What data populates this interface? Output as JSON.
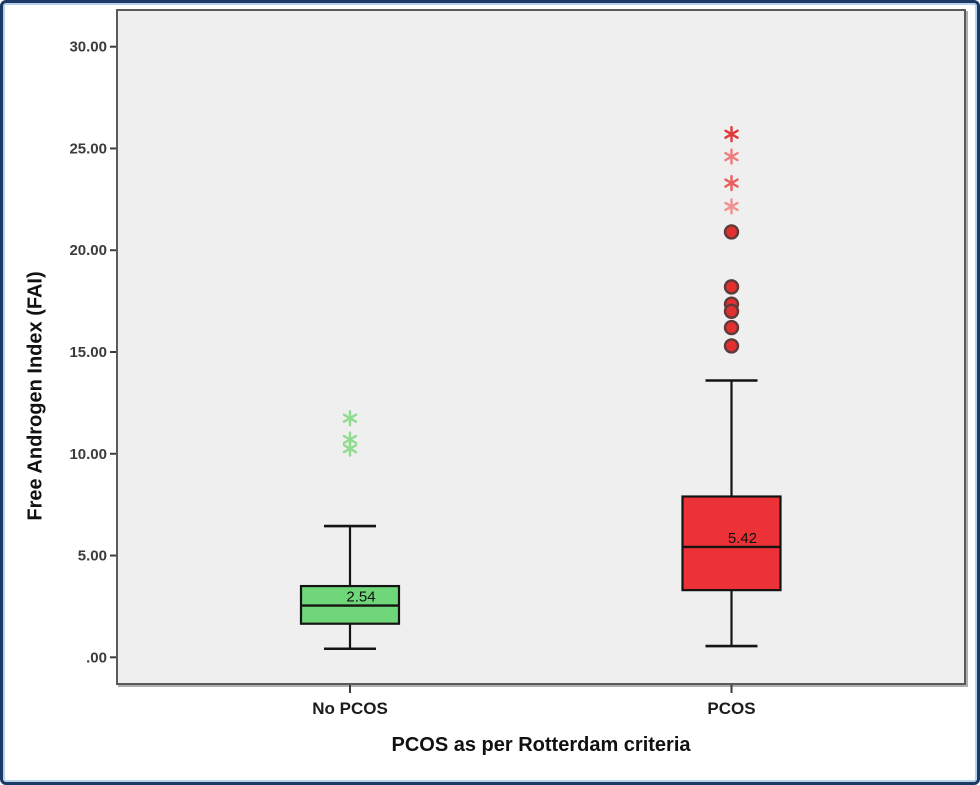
{
  "colors": {
    "frame_border": "#1b3a66",
    "frame_inner_accent": "#b9d2ec",
    "plot_background": "#efefef",
    "plot_border": "#5a5a5a",
    "box_line": "#141414",
    "tick_color": "#3b3b3b",
    "no_pcos_box": "#6fd67a",
    "pcos_box": "#ed3237"
  },
  "chart_data": {
    "type": "boxplot",
    "title": "",
    "xlabel": "PCOS as per Rotterdam criteria",
    "ylabel": "Free Androgen Index (FAI)",
    "ylim": [
      0,
      30
    ],
    "grid": false,
    "legend": "none",
    "yticks": [
      {
        "value": 0,
        "label": ".00"
      },
      {
        "value": 5,
        "label": "5.00"
      },
      {
        "value": 10,
        "label": "10.00"
      },
      {
        "value": 15,
        "label": "15.00"
      },
      {
        "value": 20,
        "label": "20.00"
      },
      {
        "value": 25,
        "label": "25.00"
      },
      {
        "value": 30,
        "label": "30.00"
      }
    ],
    "categories": [
      "No PCOS",
      "PCOS"
    ],
    "series": [
      {
        "category": "No PCOS",
        "color": "#6fd67a",
        "median": 2.54,
        "median_label": "2.54",
        "q1": 1.65,
        "q3": 3.5,
        "whisker_low": 0.42,
        "whisker_high": 6.45,
        "outliers": [
          {
            "value": 11.75,
            "marker": "asterisk",
            "color": "#8fdc8f"
          },
          {
            "value": 10.7,
            "marker": "asterisk",
            "color": "#8fdc8f"
          },
          {
            "value": 10.25,
            "marker": "asterisk",
            "color": "#8fdc8f"
          }
        ]
      },
      {
        "category": "PCOS",
        "color": "#ed3237",
        "median": 5.42,
        "median_label": "5.42",
        "q1": 3.3,
        "q3": 7.9,
        "whisker_low": 0.55,
        "whisker_high": 13.6,
        "outliers": [
          {
            "value": 25.7,
            "marker": "asterisk",
            "color": "#e13a3a"
          },
          {
            "value": 24.6,
            "marker": "asterisk",
            "color": "#ee7c7c"
          },
          {
            "value": 23.3,
            "marker": "asterisk",
            "color": "#ea5f5f"
          },
          {
            "value": 22.15,
            "marker": "asterisk",
            "color": "#f19090"
          },
          {
            "value": 20.9,
            "marker": "circle",
            "color": "#e22f2f"
          },
          {
            "value": 18.2,
            "marker": "circle",
            "color": "#e22f2f"
          },
          {
            "value": 17.35,
            "marker": "circle",
            "color": "#e22f2f"
          },
          {
            "value": 17.0,
            "marker": "circle",
            "color": "#e22f2f"
          },
          {
            "value": 16.2,
            "marker": "circle",
            "color": "#e22f2f"
          },
          {
            "value": 15.3,
            "marker": "circle",
            "color": "#e22f2f"
          }
        ]
      }
    ]
  }
}
